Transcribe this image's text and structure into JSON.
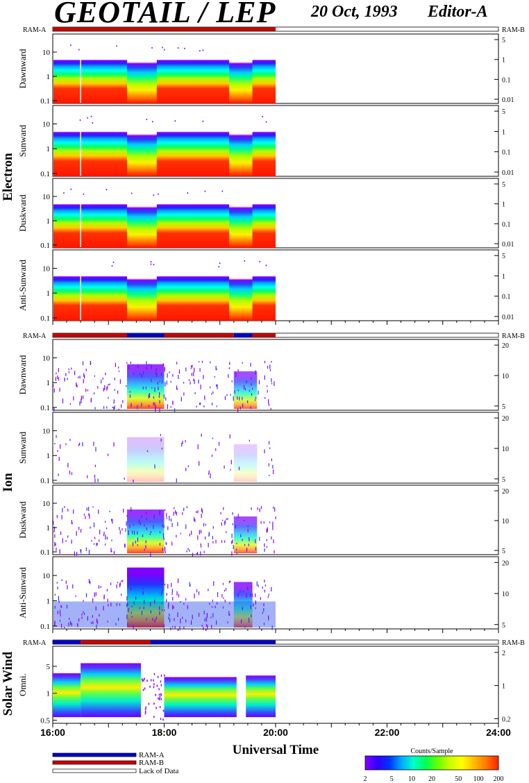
{
  "header": {
    "title": "GEOTAIL / LEP",
    "date": "20 Oct, 1993",
    "editor": "Editor-A"
  },
  "colors": {
    "ram_a": "#0000cc",
    "ram_b": "#cc0000",
    "colorbar": [
      "#7f00ff",
      "#3300ff",
      "#0033ff",
      "#00aaff",
      "#00ffcc",
      "#00ff55",
      "#66ff00",
      "#ccff00",
      "#ffff00",
      "#ffbb00",
      "#ff7700",
      "#ff2200"
    ]
  },
  "chart_data": {
    "type": "heatmap",
    "xlabel": "Universal Time",
    "x_ticks": [
      "16:00",
      "18:00",
      "20:00",
      "22:00",
      "24:00"
    ],
    "data_coverage": {
      "start": "16:00",
      "end": "20:00"
    },
    "sections": [
      {
        "name": "Electron",
        "ram_left": "RAM-A",
        "ram_right": "RAM-B",
        "ram_bar": [
          {
            "from": "16:00",
            "to": "20:00",
            "mode": "RAM-B"
          }
        ],
        "left_ticks": [
          "10",
          "1",
          "0.1"
        ],
        "right_ticks": [
          "5",
          "1",
          "0.1",
          "0.01"
        ],
        "panels": [
          {
            "name": "Dawnward"
          },
          {
            "name": "Sunward"
          },
          {
            "name": "Duskward"
          },
          {
            "name": "Anti-Sunward"
          }
        ]
      },
      {
        "name": "Ion",
        "ram_left": "RAM-A",
        "ram_right": "RAM-B",
        "ram_bar": [
          {
            "from": "16:00",
            "to": "17:20",
            "mode": "RAM-B"
          },
          {
            "from": "17:20",
            "to": "18:00",
            "mode": "RAM-A"
          },
          {
            "from": "18:00",
            "to": "19:15",
            "mode": "RAM-B"
          },
          {
            "from": "19:15",
            "to": "19:35",
            "mode": "RAM-A"
          },
          {
            "from": "19:35",
            "to": "20:00",
            "mode": "RAM-B"
          }
        ],
        "left_ticks": [
          "10",
          "1",
          "0.1"
        ],
        "right_ticks": [
          "20",
          "10",
          "5"
        ],
        "panels": [
          {
            "name": "Dawnward"
          },
          {
            "name": "Sunward"
          },
          {
            "name": "Duskward"
          },
          {
            "name": "Anti-Sunward"
          }
        ]
      },
      {
        "name": "Solar Wind",
        "ram_left": "RAM-A",
        "ram_right": "RAM-B",
        "ram_bar": [
          {
            "from": "16:00",
            "to": "16:30",
            "mode": "RAM-A"
          },
          {
            "from": "16:30",
            "to": "17:45",
            "mode": "RAM-B"
          },
          {
            "from": "17:45",
            "to": "20:00",
            "mode": "RAM-A"
          }
        ],
        "left_ticks": [
          "5",
          "1",
          "0.5"
        ],
        "right_ticks": [
          "2",
          "1",
          "0.2"
        ],
        "panels": [
          {
            "name": "Omni."
          }
        ]
      }
    ],
    "legend": [
      "RAM-A",
      "RAM-B",
      "Lack of Data"
    ],
    "colorbar": {
      "title": "Counts/Sample",
      "ticks": [
        "2",
        "5",
        "10",
        "20",
        "50",
        "100",
        "200"
      ]
    }
  }
}
